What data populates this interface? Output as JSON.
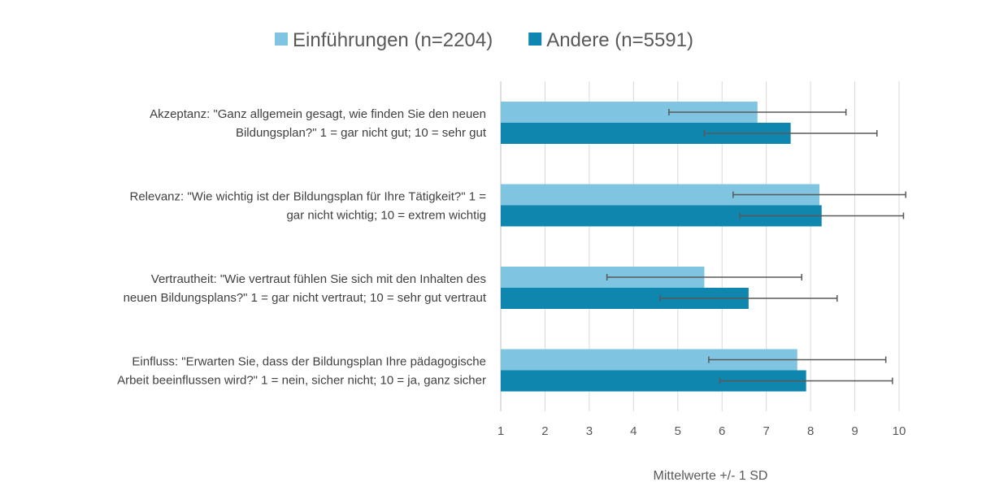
{
  "chart_data": {
    "type": "bar",
    "orientation": "horizontal",
    "categories": [
      {
        "line1": "Akzeptanz: \"Ganz allgemein gesagt, wie finden Sie den neuen",
        "line2": "Bildungsplan?\" 1 = gar nicht gut; 10 = sehr gut"
      },
      {
        "line1": "Relevanz: \"Wie wichtig ist der Bildungsplan für Ihre Tätigkeit?\" 1 =",
        "line2": "gar nicht wichtig; 10 = extrem wichtig"
      },
      {
        "line1": "Vertrautheit: \"Wie vertraut fühlen Sie sich mit den Inhalten des",
        "line2": "neuen Bildungsplans?\"  1 = gar nicht vertraut; 10 = sehr gut vertraut"
      },
      {
        "line1": "Einfluss: \"Erwarten Sie, dass der Bildungsplan Ihre pädagogische",
        "line2": "Arbeit beeinflussen wird?\" 1 = nein, sicher nicht; 10 = ja, ganz sicher"
      }
    ],
    "series": [
      {
        "name": "Einführungen (n=2204)",
        "color": "#7fc4e0",
        "values": [
          6.8,
          8.2,
          5.6,
          7.7
        ],
        "sd": [
          2.0,
          1.95,
          2.2,
          2.0
        ]
      },
      {
        "name": "Andere (n=5591)",
        "color": "#0f86ad",
        "values": [
          7.55,
          8.25,
          6.6,
          7.9
        ],
        "sd": [
          1.95,
          1.85,
          2.0,
          1.95
        ]
      }
    ],
    "xlabel": "Mittelwerte +/- 1 SD",
    "xlim": [
      1,
      10
    ],
    "xticks": [
      "1",
      "2",
      "3",
      "4",
      "5",
      "6",
      "7",
      "8",
      "9",
      "10"
    ],
    "grid": true,
    "legend": "top-center",
    "error_bar_color": "#595959"
  }
}
